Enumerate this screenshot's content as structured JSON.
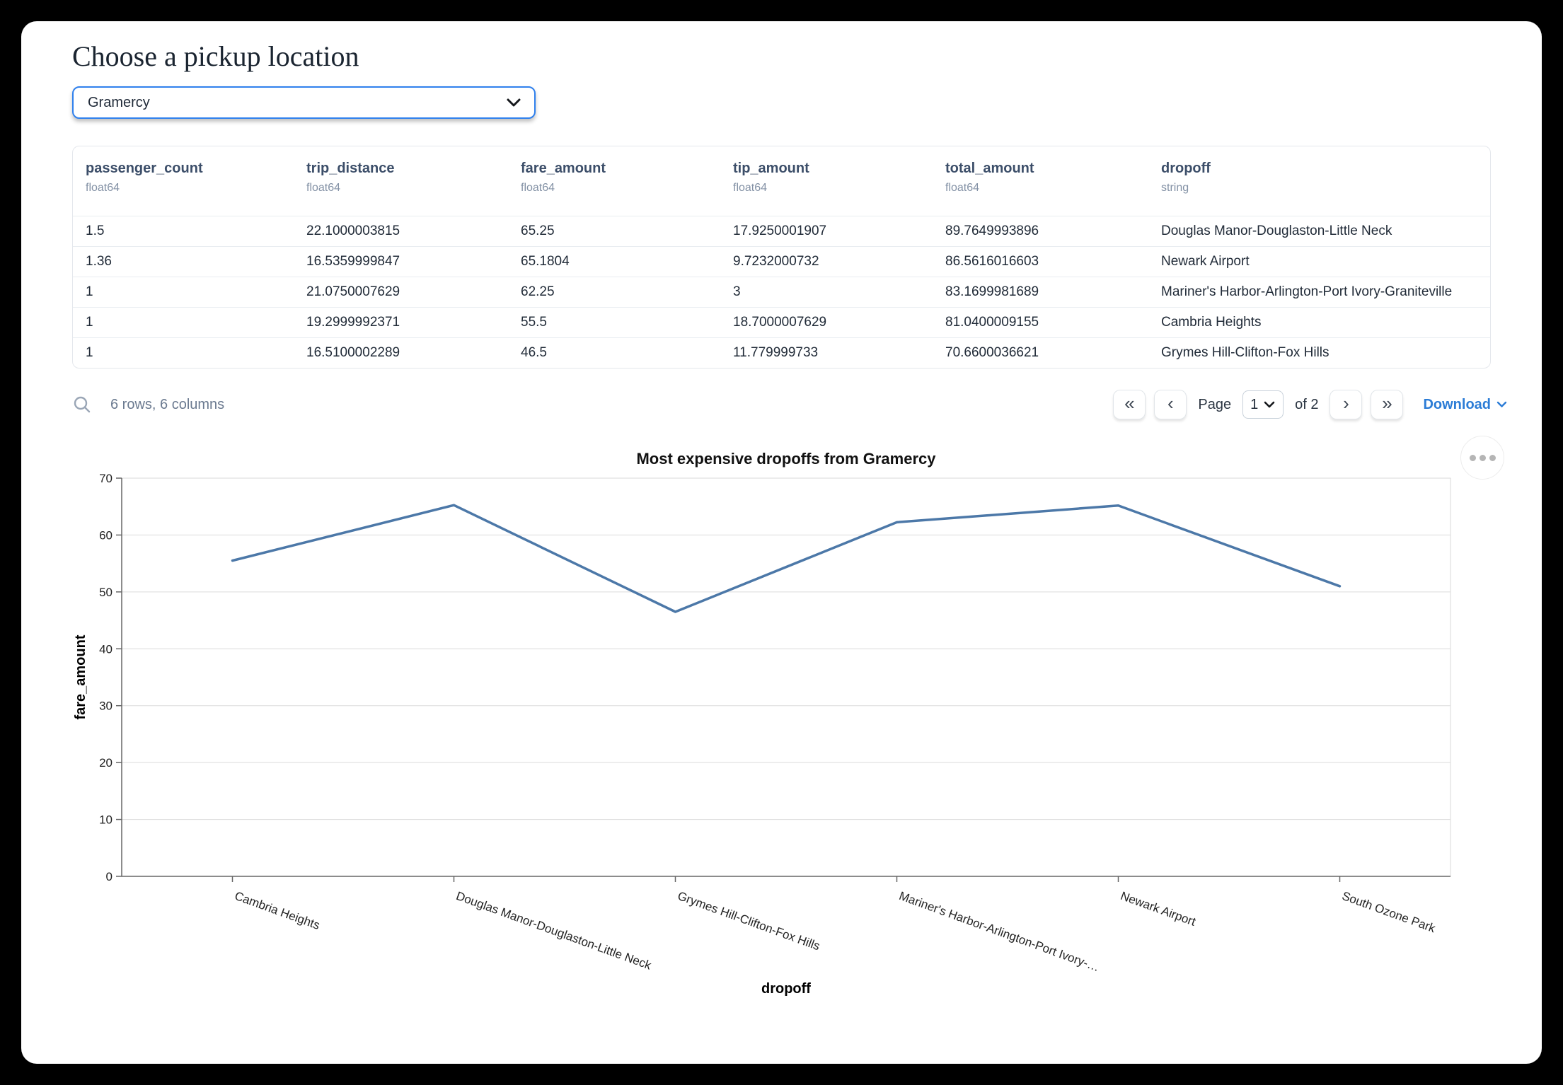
{
  "header": {
    "title": "Choose a pickup location"
  },
  "pickup_select": {
    "value": "Gramercy"
  },
  "table": {
    "columns": [
      {
        "name": "passenger_count",
        "dtype": "float64"
      },
      {
        "name": "trip_distance",
        "dtype": "float64"
      },
      {
        "name": "fare_amount",
        "dtype": "float64"
      },
      {
        "name": "tip_amount",
        "dtype": "float64"
      },
      {
        "name": "total_amount",
        "dtype": "float64"
      },
      {
        "name": "dropoff",
        "dtype": "string"
      }
    ],
    "rows": [
      [
        "1.5",
        "22.1000003815",
        "65.25",
        "17.9250001907",
        "89.7649993896",
        "Douglas Manor-Douglaston-Little Neck"
      ],
      [
        "1.36",
        "16.5359999847",
        "65.1804",
        "9.7232000732",
        "86.5616016603",
        "Newark Airport"
      ],
      [
        "1",
        "21.0750007629",
        "62.25",
        "3",
        "83.1699981689",
        "Mariner's Harbor-Arlington-Port Ivory-Graniteville"
      ],
      [
        "1",
        "19.2999992371",
        "55.5",
        "18.7000007629",
        "81.0400009155",
        "Cambria Heights"
      ],
      [
        "1",
        "16.5100002289",
        "46.5",
        "11.779999733",
        "70.6600036621",
        "Grymes Hill-Clifton-Fox Hills"
      ]
    ],
    "summary": "6 rows, 6 columns"
  },
  "pagination": {
    "first_icon": "«",
    "prev_icon": "‹",
    "page_label": "Page",
    "page_value": "1",
    "of_label": "of 2",
    "next_icon": "›",
    "last_icon": "»"
  },
  "download": {
    "label": "Download"
  },
  "chart_data": {
    "type": "line",
    "title": "Most expensive dropoffs from Gramercy",
    "xlabel": "dropoff",
    "ylabel": "fare_amount",
    "categories": [
      "Cambria Heights",
      "Douglas Manor-Douglaston-Little Neck",
      "Grymes Hill-Clifton-Fox Hills",
      "Mariner's Harbor-Arlington-Port Ivory-Graniteville",
      "Newark Airport",
      "South Ozone Park"
    ],
    "tick_labels": [
      "Cambria Heights",
      "Douglas Manor-Douglaston-Little Neck",
      "Grymes Hill-Clifton-Fox Hills",
      "Mariner's Harbor-Arlington-Port Ivory-…",
      "Newark Airport",
      "South Ozone Park"
    ],
    "values": [
      55.5,
      65.25,
      46.5,
      62.25,
      65.1804,
      51
    ],
    "ylim": [
      0,
      70
    ],
    "yticks": [
      0,
      10,
      20,
      30,
      40,
      50,
      60,
      70
    ],
    "grid": true,
    "legend_position": "none",
    "line_color": "#4c78a8",
    "grid_color": "#dcdcdc",
    "axis_color": "#666666"
  }
}
